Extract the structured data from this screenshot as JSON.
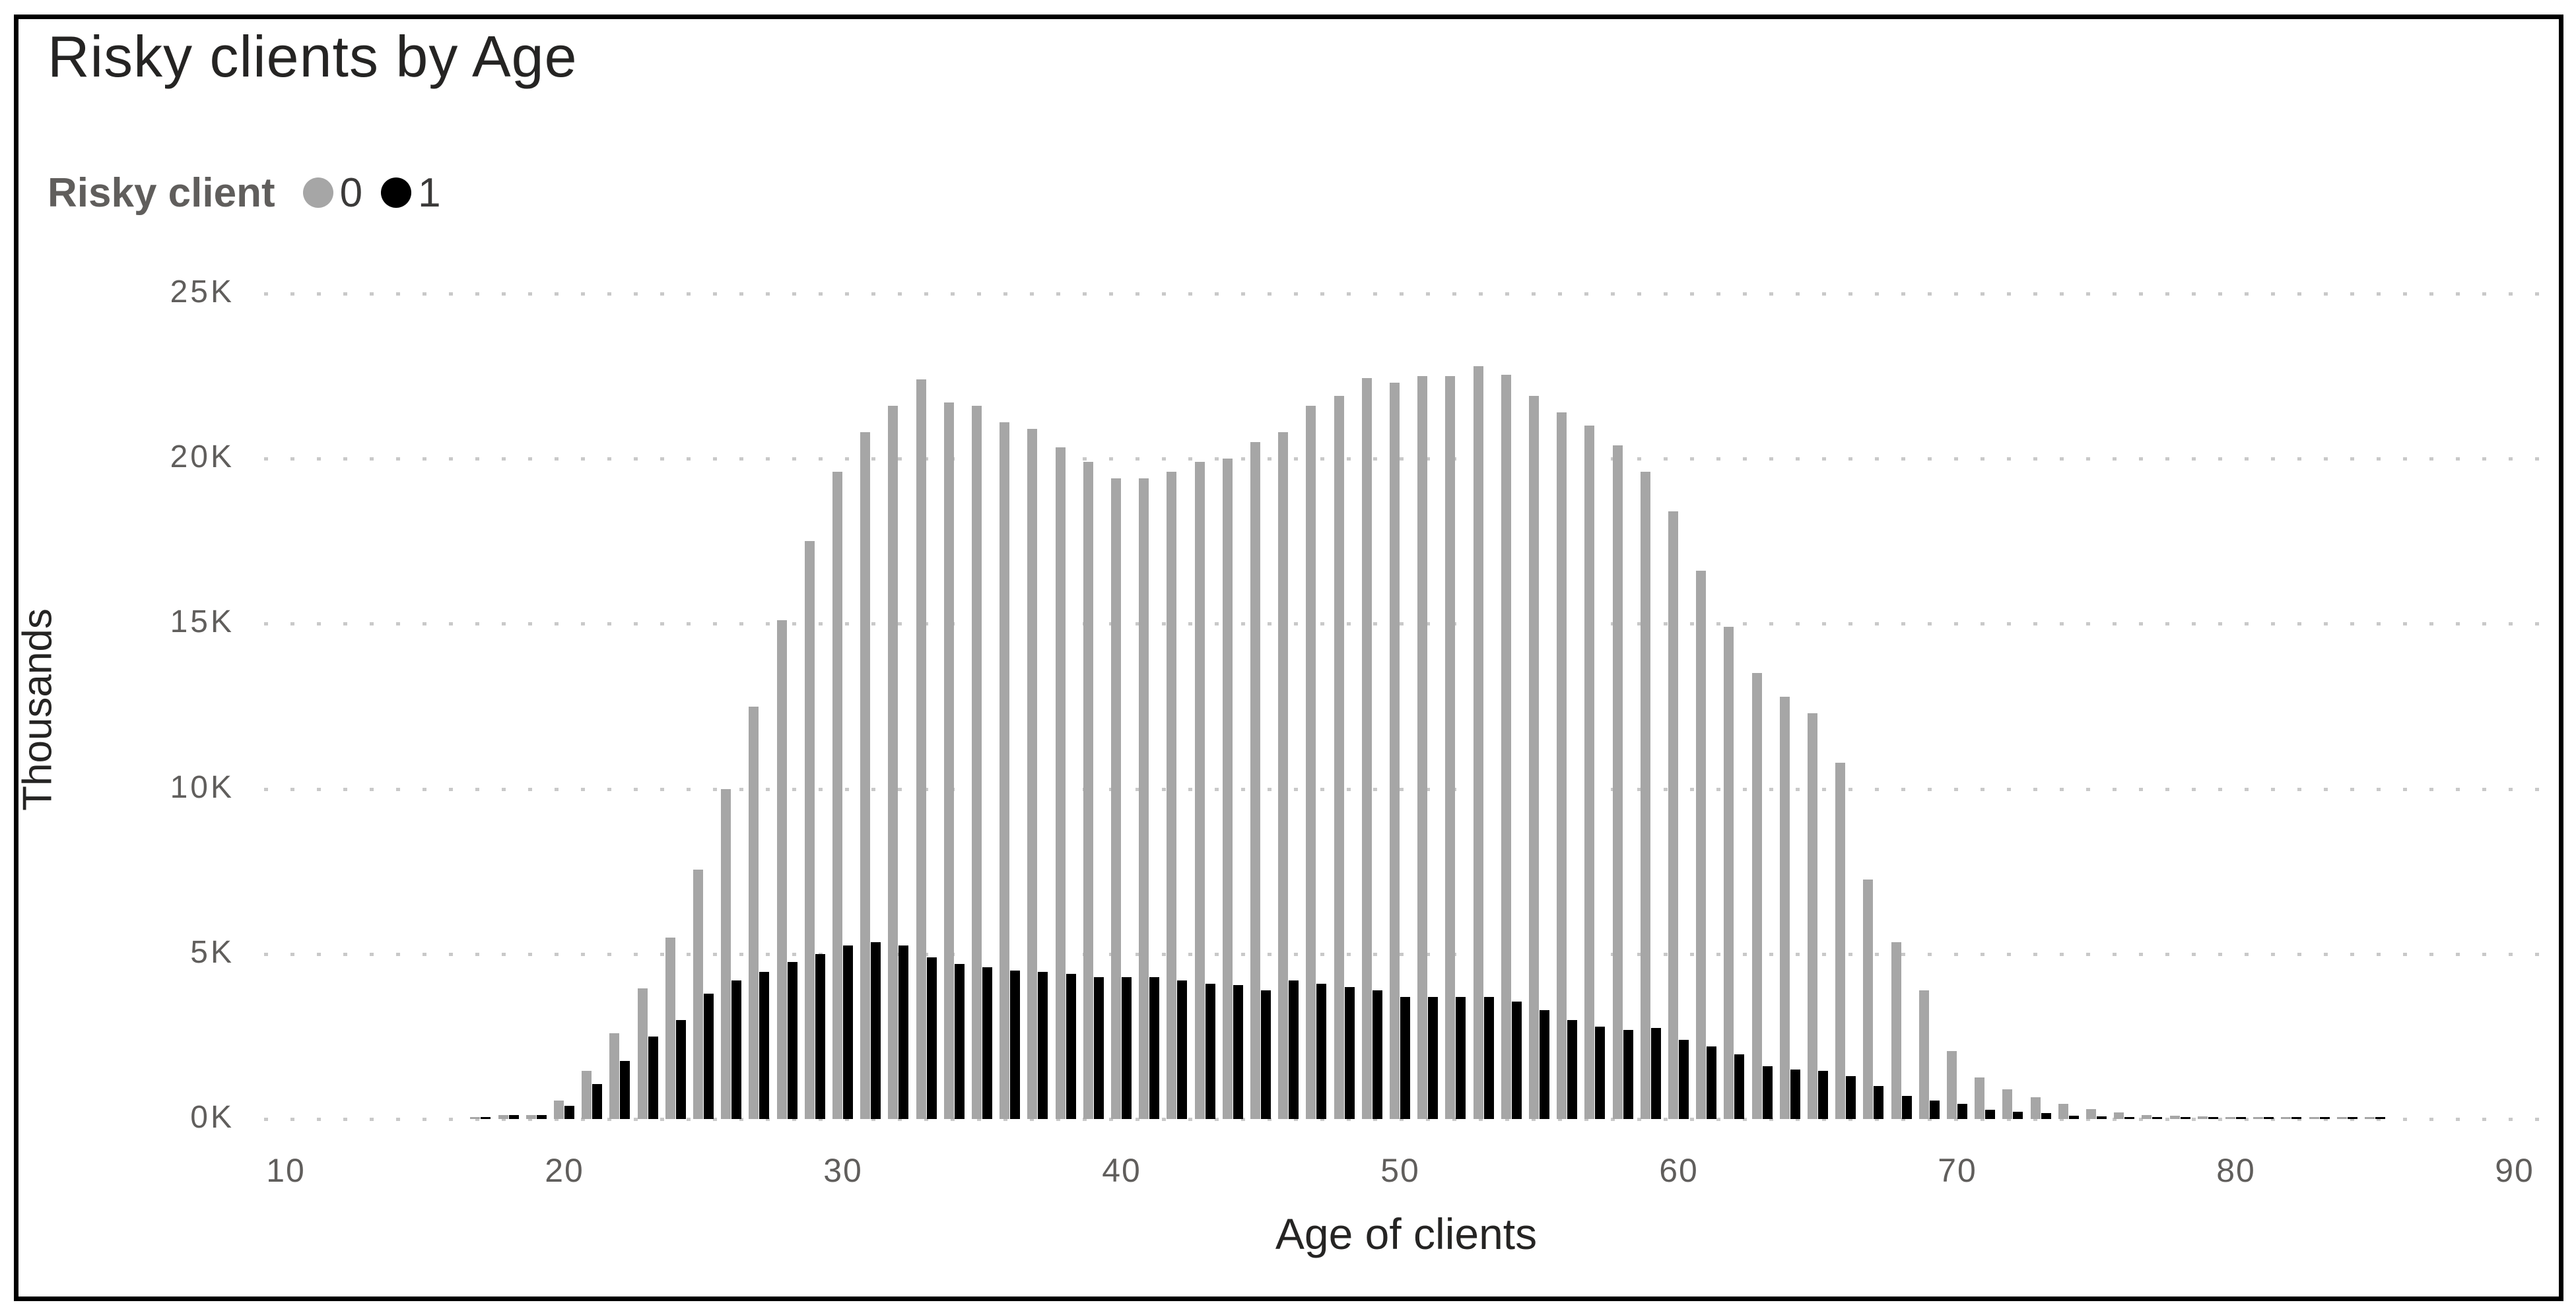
{
  "header": {
    "title": "Risky clients by Age"
  },
  "legend": {
    "label": "Risky client",
    "items": [
      {
        "label": "0",
        "color": "#a6a6a6"
      },
      {
        "label": "1",
        "color": "#000000"
      }
    ]
  },
  "axes": {
    "y_unit_label": "Thousands",
    "x_title": "Age of clients",
    "ytick_labels": [
      "25K",
      "20K",
      "15K",
      "10K",
      "5K",
      "0K"
    ],
    "xtick_labels": [
      "10",
      "20",
      "30",
      "40",
      "50",
      "60",
      "70",
      "80",
      "90"
    ]
  },
  "colors": {
    "risky0_bar": "#a6a6a6",
    "risky1_bar": "#000000",
    "grid_dots": "#c9c9c9",
    "tick_text": "#605e5c",
    "title_text": "#252423",
    "frame_border": "#000000",
    "background": "#ffffff"
  },
  "chart_data": {
    "type": "bar",
    "title": "Risky clients by Age",
    "xlabel": "Age of clients",
    "ylabel": "Thousands",
    "value_unit": "thousands of clients",
    "legend_title": "Risky client",
    "legend_position": "top-left",
    "grid": "horizontal dotted lines every 5K",
    "ylim": [
      0,
      25
    ],
    "yticks": [
      0,
      5,
      10,
      15,
      20,
      25
    ],
    "xticks": [
      10,
      20,
      30,
      40,
      50,
      60,
      70,
      80,
      90
    ],
    "x": [
      17,
      18,
      19,
      20,
      21,
      22,
      23,
      24,
      25,
      26,
      27,
      28,
      29,
      30,
      31,
      32,
      33,
      34,
      35,
      36,
      37,
      38,
      39,
      40,
      41,
      42,
      43,
      44,
      45,
      46,
      47,
      48,
      49,
      50,
      51,
      52,
      53,
      54,
      55,
      56,
      57,
      58,
      59,
      60,
      61,
      62,
      63,
      64,
      65,
      66,
      67,
      68,
      69,
      70,
      71,
      72,
      73,
      74,
      75,
      76,
      77,
      78,
      79,
      80,
      81,
      82,
      83,
      84,
      85
    ],
    "series": [
      {
        "name": "0",
        "color": "#a6a6a6",
        "values": [
          0.05,
          0.12,
          0.12,
          0.55,
          1.45,
          2.6,
          3.95,
          5.5,
          7.55,
          10.0,
          12.5,
          15.1,
          17.5,
          19.6,
          20.8,
          21.6,
          22.4,
          21.7,
          21.6,
          21.1,
          20.9,
          20.35,
          19.9,
          19.4,
          19.4,
          19.6,
          19.9,
          20.0,
          20.5,
          20.8,
          21.6,
          21.9,
          22.45,
          22.3,
          22.5,
          22.5,
          22.8,
          22.55,
          21.9,
          21.4,
          21.0,
          20.4,
          19.6,
          18.4,
          16.6,
          14.9,
          13.5,
          12.8,
          12.3,
          10.8,
          7.25,
          5.35,
          3.9,
          2.05,
          1.25,
          0.9,
          0.65,
          0.45,
          0.3,
          0.2,
          0.12,
          0.1,
          0.08,
          0.07,
          0.06,
          0.06,
          0.05,
          0.05,
          0.04
        ]
      },
      {
        "name": "1",
        "color": "#000000",
        "values": [
          0.03,
          0.12,
          0.12,
          0.4,
          1.05,
          1.75,
          2.5,
          3.0,
          3.8,
          4.2,
          4.45,
          4.75,
          5.0,
          5.25,
          5.35,
          5.25,
          4.9,
          4.7,
          4.6,
          4.5,
          4.45,
          4.4,
          4.3,
          4.3,
          4.3,
          4.2,
          4.1,
          4.05,
          3.9,
          4.2,
          4.1,
          4.0,
          3.9,
          3.7,
          3.7,
          3.7,
          3.7,
          3.55,
          3.3,
          3.0,
          2.8,
          2.7,
          2.75,
          2.4,
          2.2,
          1.95,
          1.6,
          1.5,
          1.45,
          1.3,
          1.0,
          0.7,
          0.55,
          0.45,
          0.28,
          0.22,
          0.18,
          0.1,
          0.08,
          0.06,
          0.05,
          0.05,
          0.05,
          0.04,
          0.04,
          0.04,
          0.04,
          0.03,
          0.03
        ]
      }
    ]
  }
}
